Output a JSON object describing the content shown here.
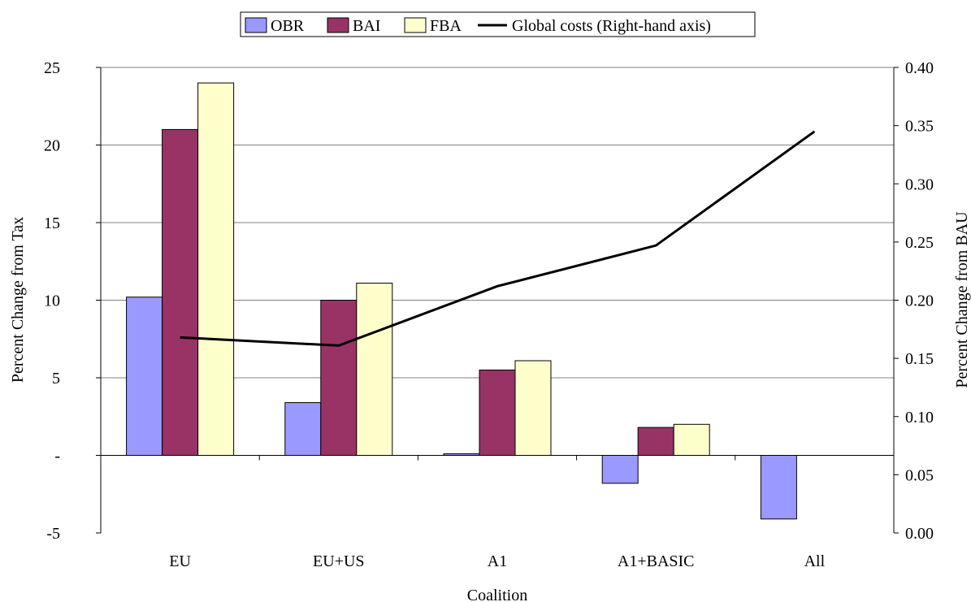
{
  "chart_data": {
    "type": "bar",
    "categories": [
      "EU",
      "EU+US",
      "A1",
      "A1+BASIC",
      "All"
    ],
    "series": [
      {
        "name": "OBR",
        "color": "#9999ff",
        "values": [
          10.2,
          3.4,
          0.1,
          -1.8,
          -4.1
        ]
      },
      {
        "name": "BAI",
        "color": "#993366",
        "values": [
          21.0,
          10.0,
          5.5,
          1.8,
          null
        ]
      },
      {
        "name": "FBA",
        "color": "#ffffcc",
        "values": [
          24.0,
          11.1,
          6.1,
          2.0,
          null
        ]
      }
    ],
    "line_series": {
      "name": "Global costs (Right-hand axis)",
      "color": "#000000",
      "axis": "right",
      "values": [
        0.168,
        0.161,
        0.212,
        0.247,
        0.345
      ]
    },
    "xlabel": "Coalition",
    "ylabel": "Percent Change from Tax",
    "y2label": "Percent Change from BAU",
    "ylim": [
      -5,
      25
    ],
    "y2lim": [
      0.0,
      0.4
    ],
    "yticks": [
      "-5",
      "-",
      "5",
      "10",
      "15",
      "20",
      "25"
    ],
    "ytick_values": [
      -5,
      0,
      5,
      10,
      15,
      20,
      25
    ],
    "y2ticks": [
      "0.00",
      "0.05",
      "0.10",
      "0.15",
      "0.20",
      "0.25",
      "0.30",
      "0.35",
      "0.40"
    ],
    "y2tick_values": [
      0.0,
      0.05,
      0.1,
      0.15,
      0.2,
      0.25,
      0.3,
      0.35,
      0.4
    ],
    "grid": "horizontal",
    "legend_position": "top-center"
  }
}
